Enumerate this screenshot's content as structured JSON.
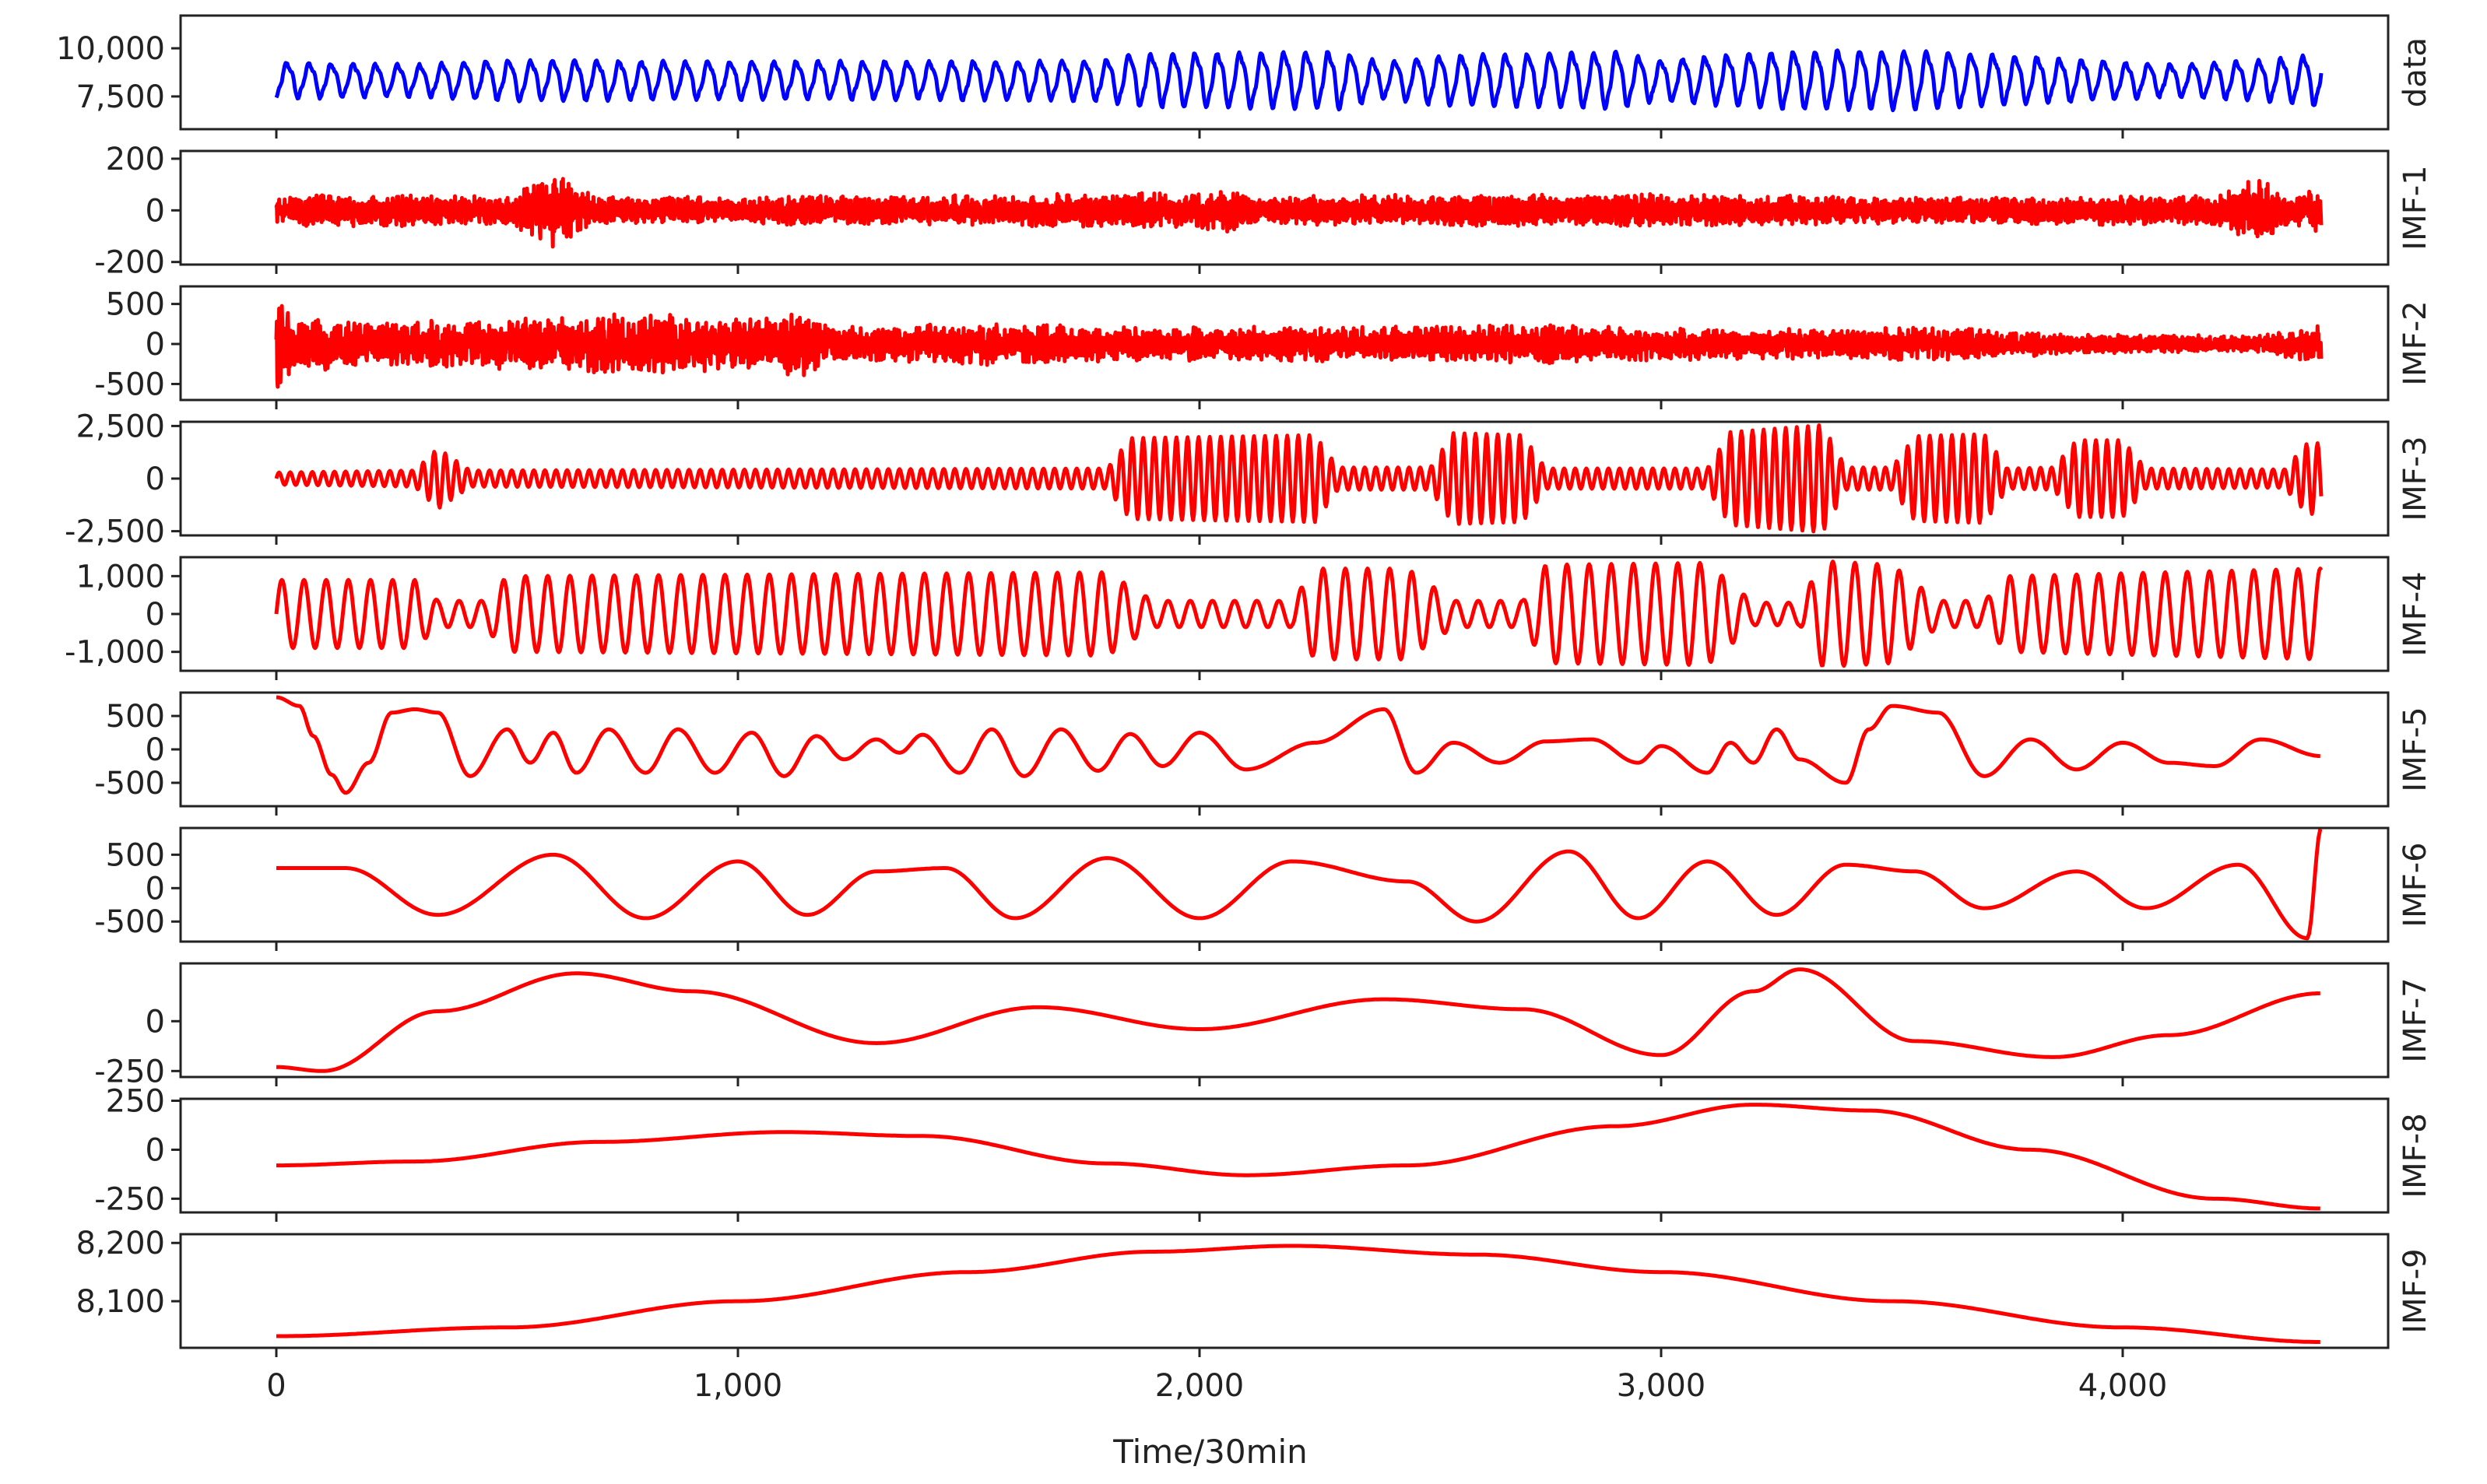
{
  "figure": {
    "xlabel": "Time/30min",
    "x_range": [
      0,
      4430
    ],
    "x_ticks": [
      0,
      1000,
      2000,
      3000,
      4000
    ],
    "x_tick_labels": [
      "0",
      "1,000",
      "2,000",
      "3,000",
      "4,000"
    ]
  },
  "colors": {
    "data": "#0000ff",
    "imf": "#ff0000",
    "axis": "#222222"
  },
  "chart_data": [
    {
      "type": "line",
      "name": "data",
      "label": "data",
      "color": "#0000ff",
      "ylim": [
        5800,
        11700
      ],
      "yticks": [
        7500,
        10000
      ],
      "ytick_labels": [
        "7,500",
        "10,000"
      ],
      "signal": {
        "kind": "load",
        "base": 8300,
        "amp": 1150,
        "period": 48,
        "envelope": [
          [
            0,
            0.85
          ],
          [
            300,
            0.75
          ],
          [
            500,
            0.95
          ],
          [
            900,
            0.9
          ],
          [
            1400,
            0.9
          ],
          [
            1800,
            0.95
          ],
          [
            1850,
            1.25
          ],
          [
            2300,
            1.35
          ],
          [
            2400,
            0.85
          ],
          [
            2500,
            1.15
          ],
          [
            2900,
            1.35
          ],
          [
            3000,
            0.95
          ],
          [
            3200,
            1.3
          ],
          [
            3400,
            1.4
          ],
          [
            3600,
            1.35
          ],
          [
            3800,
            1.1
          ],
          [
            4100,
            0.75
          ],
          [
            4300,
            0.95
          ],
          [
            4430,
            1.25
          ]
        ]
      }
    },
    {
      "type": "line",
      "name": "IMF-1",
      "label": "IMF-1",
      "color": "#ff0000",
      "ylim": [
        -210,
        230
      ],
      "yticks": [
        -200,
        0,
        200
      ],
      "ytick_labels": [
        "-200",
        "0",
        "200"
      ],
      "signal": {
        "kind": "noise",
        "amp": 45,
        "period": 3,
        "envelope": [
          [
            0,
            0.8
          ],
          [
            100,
            1.2
          ],
          [
            500,
            0.9
          ],
          [
            600,
            2.6
          ],
          [
            650,
            1.5
          ],
          [
            700,
            0.9
          ],
          [
            1400,
            1.0
          ],
          [
            2000,
            1.2
          ],
          [
            2050,
            1.6
          ],
          [
            2100,
            1.0
          ],
          [
            3000,
            1.1
          ],
          [
            3500,
            0.9
          ],
          [
            4200,
            1.0
          ],
          [
            4300,
            2.3
          ],
          [
            4350,
            1.0
          ],
          [
            4430,
            1.6
          ]
        ]
      }
    },
    {
      "type": "line",
      "name": "IMF-2",
      "label": "IMF-2",
      "color": "#ff0000",
      "ylim": [
        -700,
        720
      ],
      "yticks": [
        -500,
        0,
        500
      ],
      "ytick_labels": [
        "-500",
        "0",
        "500"
      ],
      "signal": {
        "kind": "noise",
        "amp": 160,
        "period": 6,
        "envelope": [
          [
            0,
            3.5
          ],
          [
            40,
            1.8
          ],
          [
            200,
            1.3
          ],
          [
            600,
            1.6
          ],
          [
            800,
            1.9
          ],
          [
            1000,
            1.5
          ],
          [
            1150,
            2.0
          ],
          [
            1200,
            1.0
          ],
          [
            1500,
            1.3
          ],
          [
            1900,
            1.0
          ],
          [
            2500,
            1.1
          ],
          [
            2700,
            1.2
          ],
          [
            3200,
            0.9
          ],
          [
            3600,
            1.0
          ],
          [
            3900,
            0.6
          ],
          [
            4300,
            0.5
          ],
          [
            4430,
            1.3
          ]
        ]
      }
    },
    {
      "type": "line",
      "name": "IMF-3",
      "label": "IMF-3",
      "color": "#ff0000",
      "ylim": [
        -2700,
        2700
      ],
      "yticks": [
        -2500,
        0,
        2500
      ],
      "ytick_labels": [
        "-2,500",
        "0",
        "2,500"
      ],
      "signal": {
        "kind": "wave",
        "amp": 480,
        "period": 24,
        "envelope": [
          [
            0,
            0.6
          ],
          [
            300,
            0.8
          ],
          [
            350,
            3.0
          ],
          [
            420,
            0.8
          ],
          [
            1800,
            1.0
          ],
          [
            1850,
            4.0
          ],
          [
            2250,
            4.3
          ],
          [
            2300,
            1.1
          ],
          [
            2500,
            1.1
          ],
          [
            2550,
            4.5
          ],
          [
            2700,
            4.3
          ],
          [
            2750,
            1.0
          ],
          [
            3100,
            1.0
          ],
          [
            3150,
            4.6
          ],
          [
            3350,
            5.3
          ],
          [
            3400,
            1.1
          ],
          [
            3500,
            1.1
          ],
          [
            3550,
            4.2
          ],
          [
            3700,
            4.4
          ],
          [
            3750,
            1.0
          ],
          [
            3850,
            1.1
          ],
          [
            3900,
            3.8
          ],
          [
            4000,
            3.8
          ],
          [
            4050,
            1.0
          ],
          [
            4350,
            0.9
          ],
          [
            4400,
            3.5
          ],
          [
            4430,
            3.5
          ]
        ]
      }
    },
    {
      "type": "line",
      "name": "IMF-4",
      "label": "IMF-4",
      "color": "#ff0000",
      "ylim": [
        -1500,
        1500
      ],
      "yticks": [
        -1000,
        0,
        1000
      ],
      "ytick_labels": [
        "-1,000",
        "0",
        "1,000"
      ],
      "signal": {
        "kind": "wave",
        "amp": 1000,
        "period": 48,
        "envelope": [
          [
            0,
            0.9
          ],
          [
            300,
            0.9
          ],
          [
            350,
            0.35
          ],
          [
            450,
            0.35
          ],
          [
            500,
            1.0
          ],
          [
            1800,
            1.1
          ],
          [
            1900,
            0.35
          ],
          [
            2200,
            0.35
          ],
          [
            2250,
            1.2
          ],
          [
            2450,
            1.2
          ],
          [
            2550,
            0.35
          ],
          [
            2700,
            0.35
          ],
          [
            2750,
            1.3
          ],
          [
            3100,
            1.35
          ],
          [
            3200,
            0.3
          ],
          [
            3300,
            0.3
          ],
          [
            3350,
            1.4
          ],
          [
            3500,
            1.3
          ],
          [
            3600,
            0.35
          ],
          [
            3700,
            0.35
          ],
          [
            3750,
            1.0
          ],
          [
            4430,
            1.2
          ]
        ]
      }
    },
    {
      "type": "line",
      "name": "IMF-5",
      "label": "IMF-5",
      "color": "#ff0000",
      "ylim": [
        -850,
        850
      ],
      "yticks": [
        -500,
        0,
        500
      ],
      "ytick_labels": [
        "-500",
        "0",
        "500"
      ],
      "signal": {
        "kind": "points",
        "points": [
          [
            0,
            780
          ],
          [
            50,
            650
          ],
          [
            80,
            200
          ],
          [
            120,
            -380
          ],
          [
            150,
            -650
          ],
          [
            200,
            -200
          ],
          [
            250,
            550
          ],
          [
            300,
            600
          ],
          [
            350,
            550
          ],
          [
            420,
            -400
          ],
          [
            500,
            300
          ],
          [
            550,
            -200
          ],
          [
            600,
            250
          ],
          [
            650,
            -350
          ],
          [
            720,
            300
          ],
          [
            800,
            -350
          ],
          [
            870,
            300
          ],
          [
            950,
            -350
          ],
          [
            1030,
            250
          ],
          [
            1100,
            -400
          ],
          [
            1170,
            200
          ],
          [
            1230,
            -150
          ],
          [
            1300,
            150
          ],
          [
            1350,
            -50
          ],
          [
            1400,
            220
          ],
          [
            1480,
            -350
          ],
          [
            1550,
            300
          ],
          [
            1620,
            -400
          ],
          [
            1700,
            300
          ],
          [
            1780,
            -320
          ],
          [
            1850,
            230
          ],
          [
            1920,
            -250
          ],
          [
            2000,
            250
          ],
          [
            2100,
            -300
          ],
          [
            2250,
            100
          ],
          [
            2400,
            600
          ],
          [
            2470,
            -350
          ],
          [
            2550,
            100
          ],
          [
            2650,
            -200
          ],
          [
            2750,
            120
          ],
          [
            2850,
            150
          ],
          [
            2950,
            -200
          ],
          [
            3000,
            50
          ],
          [
            3100,
            -350
          ],
          [
            3150,
            100
          ],
          [
            3200,
            -200
          ],
          [
            3250,
            300
          ],
          [
            3300,
            -150
          ],
          [
            3400,
            -500
          ],
          [
            3450,
            300
          ],
          [
            3500,
            650
          ],
          [
            3600,
            550
          ],
          [
            3700,
            -400
          ],
          [
            3800,
            150
          ],
          [
            3900,
            -300
          ],
          [
            4000,
            100
          ],
          [
            4100,
            -200
          ],
          [
            4200,
            -250
          ],
          [
            4300,
            150
          ],
          [
            4430,
            -100
          ]
        ]
      }
    },
    {
      "type": "line",
      "name": "IMF-6",
      "label": "IMF-6",
      "color": "#ff0000",
      "ylim": [
        -800,
        900
      ],
      "yticks": [
        -500,
        0,
        500
      ],
      "ytick_labels": [
        "-500",
        "0",
        "500"
      ],
      "signal": {
        "kind": "points",
        "points": [
          [
            0,
            300
          ],
          [
            150,
            300
          ],
          [
            350,
            -400
          ],
          [
            600,
            500
          ],
          [
            800,
            -450
          ],
          [
            1000,
            400
          ],
          [
            1150,
            -400
          ],
          [
            1300,
            250
          ],
          [
            1450,
            300
          ],
          [
            1600,
            -450
          ],
          [
            1800,
            450
          ],
          [
            2000,
            -450
          ],
          [
            2200,
            400
          ],
          [
            2450,
            100
          ],
          [
            2600,
            -500
          ],
          [
            2800,
            550
          ],
          [
            2950,
            -450
          ],
          [
            3100,
            400
          ],
          [
            3250,
            -400
          ],
          [
            3400,
            350
          ],
          [
            3550,
            250
          ],
          [
            3700,
            -300
          ],
          [
            3900,
            250
          ],
          [
            4050,
            -300
          ],
          [
            4250,
            350
          ],
          [
            4400,
            -750
          ],
          [
            4430,
            900
          ]
        ]
      }
    },
    {
      "type": "line",
      "name": "IMF-7",
      "label": "IMF-7",
      "color": "#ff0000",
      "ylim": [
        -280,
        290
      ],
      "yticks": [
        -250,
        0
      ],
      "ytick_labels": [
        "-250",
        "0"
      ],
      "signal": {
        "kind": "points",
        "points": [
          [
            0,
            -230
          ],
          [
            100,
            -250
          ],
          [
            350,
            50
          ],
          [
            650,
            240
          ],
          [
            900,
            150
          ],
          [
            1300,
            -110
          ],
          [
            1650,
            70
          ],
          [
            2000,
            -40
          ],
          [
            2400,
            110
          ],
          [
            2700,
            60
          ],
          [
            3000,
            -170
          ],
          [
            3200,
            150
          ],
          [
            3300,
            260
          ],
          [
            3550,
            -100
          ],
          [
            3850,
            -180
          ],
          [
            4100,
            -70
          ],
          [
            4430,
            140
          ]
        ]
      }
    },
    {
      "type": "line",
      "name": "IMF-8",
      "label": "IMF-8",
      "color": "#ff0000",
      "ylim": [
        -320,
        260
      ],
      "yticks": [
        -250,
        0,
        250
      ],
      "ytick_labels": [
        "-250",
        "0",
        "250"
      ],
      "signal": {
        "kind": "points",
        "points": [
          [
            0,
            -80
          ],
          [
            300,
            -60
          ],
          [
            700,
            40
          ],
          [
            1100,
            90
          ],
          [
            1400,
            70
          ],
          [
            1800,
            -70
          ],
          [
            2100,
            -130
          ],
          [
            2450,
            -80
          ],
          [
            2900,
            120
          ],
          [
            3200,
            230
          ],
          [
            3450,
            200
          ],
          [
            3800,
            0
          ],
          [
            4200,
            -250
          ],
          [
            4430,
            -300
          ]
        ]
      }
    },
    {
      "type": "line",
      "name": "IMF-9",
      "label": "IMF-9",
      "color": "#ff0000",
      "ylim": [
        8020,
        8215
      ],
      "yticks": [
        8100,
        8200
      ],
      "ytick_labels": [
        "8,100",
        "8,200"
      ],
      "signal": {
        "kind": "points",
        "points": [
          [
            0,
            8040
          ],
          [
            500,
            8055
          ],
          [
            1000,
            8100
          ],
          [
            1500,
            8150
          ],
          [
            1900,
            8185
          ],
          [
            2200,
            8195
          ],
          [
            2600,
            8180
          ],
          [
            3000,
            8150
          ],
          [
            3500,
            8100
          ],
          [
            4000,
            8055
          ],
          [
            4430,
            8030
          ]
        ]
      }
    }
  ]
}
